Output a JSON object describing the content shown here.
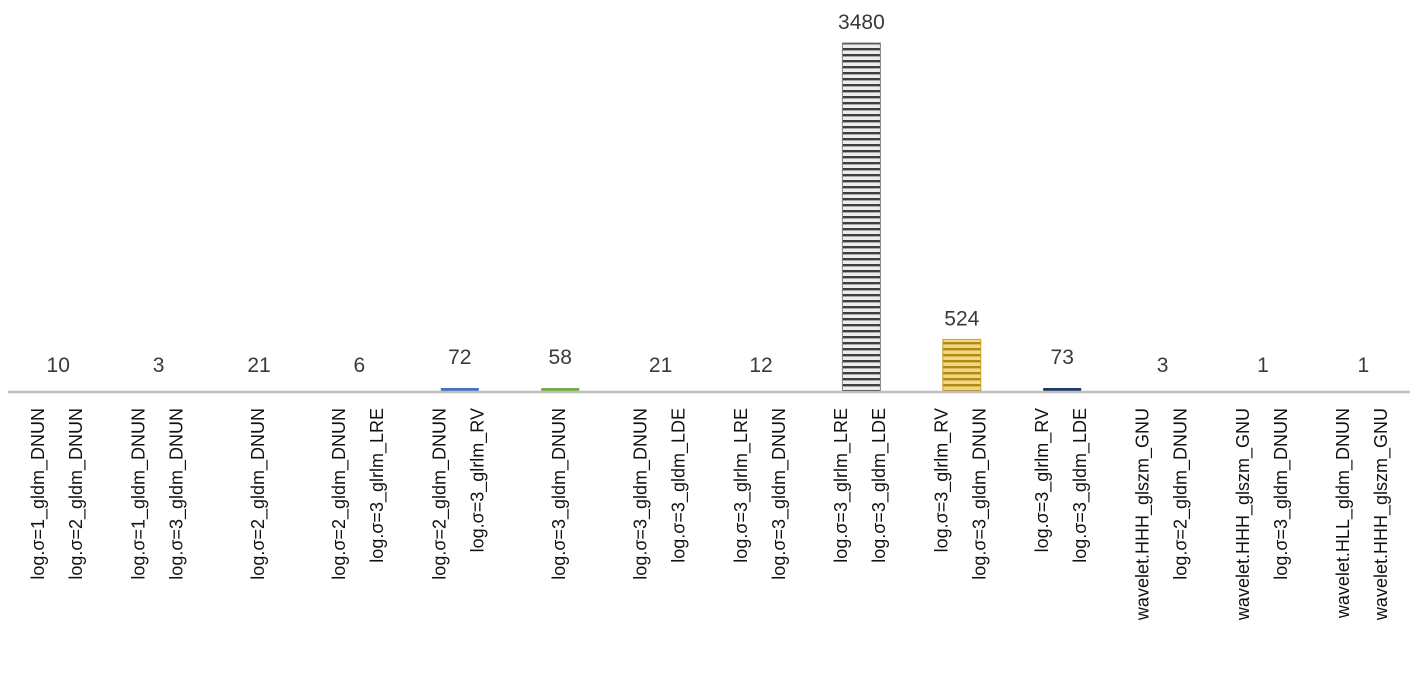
{
  "chart_data": {
    "type": "bar",
    "title": "",
    "xlabel": "",
    "ylabel": "",
    "categories": [
      [
        "log.σ=1_gldm_DNUN",
        "log.σ=2_gldm_DNUN"
      ],
      [
        "log.σ=1_gldm_DNUN",
        "log.σ=3_gldm_DNUN"
      ],
      [
        "log.σ=2_gldm_DNUN"
      ],
      [
        "log.σ=2_gldm_DNUN",
        "log.σ=3_glrlm_LRE"
      ],
      [
        "log.σ=2_gldm_DNUN",
        "log.σ=3_glrlm_RV"
      ],
      [
        "log.σ=3_gldm_DNUN"
      ],
      [
        "log.σ=3_gldm_DNUN",
        "log.σ=3_gldm_LDE"
      ],
      [
        "log.σ=3_glrlm_LRE",
        "log.σ=3_gldm_DNUN"
      ],
      [
        "log.σ=3_glrlm_LRE",
        "log.σ=3_gldm_LDE"
      ],
      [
        "log.σ=3_glrlm_RV",
        "log.σ=3_gldm_DNUN"
      ],
      [
        "log.σ=3_glrlm_RV",
        "log.σ=3_gldm_LDE"
      ],
      [
        "wavelet.HHH_glszm_GNU",
        "log.σ=2_gldm_DNUN"
      ],
      [
        "wavelet.HHH_glszm_GNU",
        "log.σ=3_gldm_DNUN"
      ],
      [
        "wavelet.HLL_gldm_DNUN",
        "wavelet.HHH_glszm_GNU"
      ]
    ],
    "values": [
      10,
      3,
      21,
      6,
      72,
      58,
      21,
      12,
      3480,
      524,
      73,
      3,
      1,
      1
    ],
    "value_labels": [
      "10",
      "3",
      "21",
      "6",
      "72",
      "58",
      "21",
      "12",
      "3480",
      "524",
      "73",
      "3",
      "1",
      "1"
    ],
    "bar_colors": [
      "#9e9e9e",
      "#9e9e9e",
      "#9e9e9e",
      "#9e9e9e",
      "#4472c4",
      "#70ad47",
      "#9e9e9e",
      "#9e9e9e",
      "#7f7f7f",
      "#c9a227",
      "#1f3864",
      "#9e9e9e",
      "#9e9e9e",
      "#9e9e9e"
    ],
    "bar_patterns": [
      "none",
      "none",
      "none",
      "none",
      "solid",
      "solid",
      "none",
      "none",
      "horizontal-stripes",
      "horizontal-stripes",
      "solid",
      "none",
      "none",
      "none"
    ],
    "ylim": [
      0,
      3480
    ],
    "grid": false,
    "legend": "none",
    "axis_color": "#bfbfbf"
  }
}
